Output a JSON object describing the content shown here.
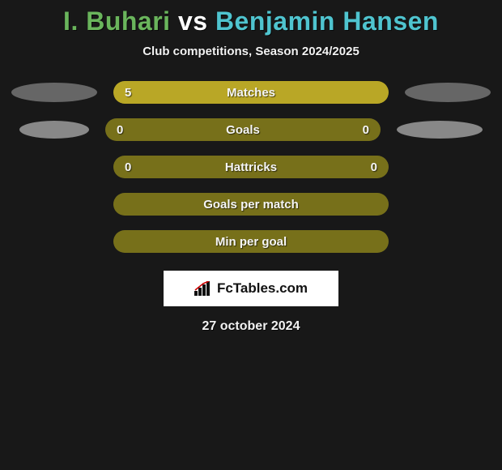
{
  "title": {
    "player1": "I. Buhari",
    "vs": "vs",
    "player2": "Benjamin Hansen",
    "color_p1": "#6ab55c",
    "color_vs": "#ffffff",
    "color_p2": "#4fc4cf"
  },
  "subtitle": "Club competitions, Season 2024/2025",
  "colors": {
    "bar_bg": "#77701a",
    "bar_fill_left": "#b9a726",
    "bar_fill_right": "#b9a726",
    "ellipse_left_primary": "#666666",
    "ellipse_left_secondary": "#888888",
    "ellipse_right_primary": "#666666",
    "ellipse_right_secondary": "#888888"
  },
  "ellipse_sizes": {
    "row0_left_w": 106,
    "row0_left_h": 24,
    "row0_right_w": 106,
    "row0_right_h": 24,
    "row1_left_w": 86,
    "row1_left_h": 22,
    "row1_right_w": 106,
    "row1_right_h": 22
  },
  "rows": [
    {
      "label": "Matches",
      "left_val": "5",
      "right_val": "",
      "left_fill_pct": 100,
      "right_fill_pct": 0,
      "show_left_ellipse": true,
      "show_right_ellipse": true,
      "left_ellipse_color": "#666666",
      "right_ellipse_color": "#666666"
    },
    {
      "label": "Goals",
      "left_val": "0",
      "right_val": "0",
      "left_fill_pct": 0,
      "right_fill_pct": 0,
      "show_left_ellipse": true,
      "show_right_ellipse": true,
      "left_ellipse_color": "#888888",
      "right_ellipse_color": "#888888"
    },
    {
      "label": "Hattricks",
      "left_val": "0",
      "right_val": "0",
      "left_fill_pct": 0,
      "right_fill_pct": 0,
      "show_left_ellipse": false,
      "show_right_ellipse": false
    },
    {
      "label": "Goals per match",
      "left_val": "",
      "right_val": "",
      "left_fill_pct": 0,
      "right_fill_pct": 0,
      "show_left_ellipse": false,
      "show_right_ellipse": false
    },
    {
      "label": "Min per goal",
      "left_val": "",
      "right_val": "",
      "left_fill_pct": 0,
      "right_fill_pct": 0,
      "show_left_ellipse": false,
      "show_right_ellipse": false
    }
  ],
  "logo_text": "FcTables.com",
  "date": "27 october 2024"
}
